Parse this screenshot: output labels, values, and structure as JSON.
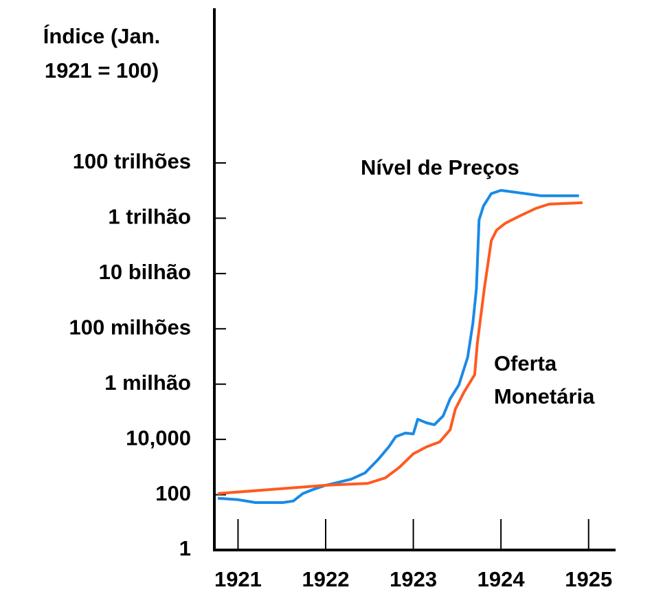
{
  "chart_data": {
    "type": "line",
    "ylabel": [
      "Índice (Jan.",
      "1921 = 100)"
    ],
    "annotations": [
      {
        "lines": [
          "Nível de Preços"
        ],
        "x": 1922.4,
        "y": 60000000000000,
        "anchor": "start"
      },
      {
        "lines": [
          "Oferta",
          "Monetária"
        ],
        "x": 1923.92,
        "y": 5000000,
        "anchor": "start"
      }
    ],
    "yscale": "log",
    "ylim": [
      1,
      100000000000000
    ],
    "yticks": [
      1,
      100,
      {
        "value": 10000,
        "label": "10,000"
      },
      {
        "value": 1000000,
        "label": "1 milhão"
      },
      {
        "value": 100000000,
        "label": "100 milhões"
      },
      {
        "value": 10000000000,
        "label": "10 bilhão"
      },
      {
        "value": 1000000000000,
        "label": "1 trilhão"
      },
      {
        "value": 100000000000000,
        "label": "100 trilhões"
      }
    ],
    "xlim": [
      1920.73,
      1925.3
    ],
    "xticks": [
      1921,
      1922,
      1923,
      1924,
      1925
    ],
    "series": [
      {
        "color": "#1a8ae6",
        "x": [
          1920.77,
          1921,
          1921.2,
          1921.51,
          1921.63,
          1921.74,
          1921.86,
          1922,
          1922.29,
          1922.45,
          1922.6,
          1922.72,
          1922.8,
          1922.91,
          1923,
          1923.05,
          1923.15,
          1923.24,
          1923.34,
          1923.42,
          1923.52,
          1923.62,
          1923.68,
          1923.72,
          1923.75,
          1923.8,
          1923.89,
          1924,
          1924.23,
          1924.46,
          1924.89
        ],
        "values": [
          74,
          66,
          52,
          52,
          59,
          110,
          155,
          219,
          363,
          617,
          1905,
          5370,
          12589,
          16982,
          15849,
          53703,
          39811,
          33884,
          70795,
          295121,
          933254,
          9330000,
          162000000,
          2820000000,
          871000000000,
          2750000000000,
          7760000000000,
          10200000000000,
          8130000000000,
          6460000000000,
          6460000000000
        ]
      },
      {
        "color": "#ff5a1f",
        "x": [
          1920.77,
          1922,
          1922.48,
          1922.68,
          1922.84,
          1923,
          1923.15,
          1923.3,
          1923.42,
          1923.48,
          1923.58,
          1923.7,
          1923.73,
          1923.81,
          1923.89,
          1923.95,
          1924.05,
          1924.2,
          1924.4,
          1924.55,
          1924.93
        ],
        "values": [
          110,
          219,
          257,
          407,
          977,
          3020,
          5370,
          8128,
          22387,
          125893,
          524807,
          2190000,
          28800000,
          2820000000,
          155000000000,
          372000000000,
          661000000000,
          1150000000000,
          2290000000000,
          3240000000000,
          3630000000000
        ]
      }
    ]
  }
}
